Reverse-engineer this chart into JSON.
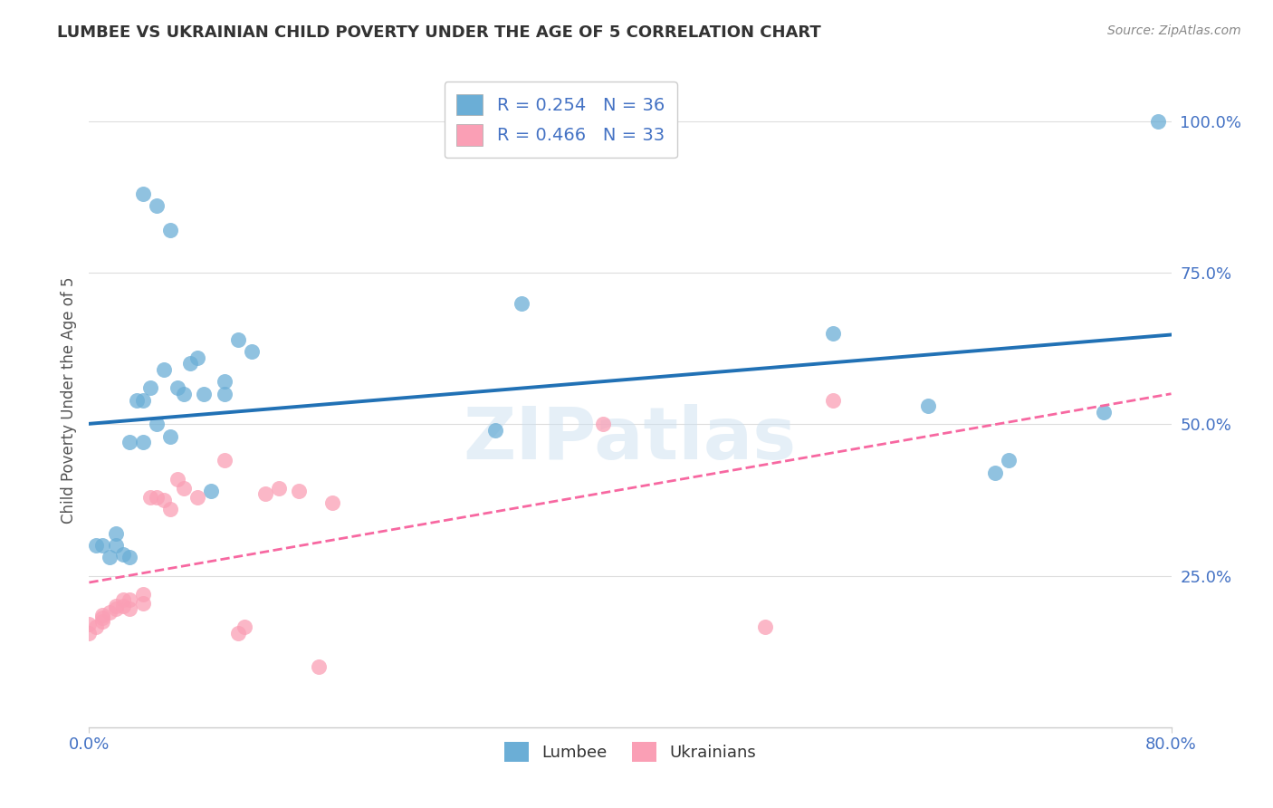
{
  "title": "LUMBEE VS UKRAINIAN CHILD POVERTY UNDER THE AGE OF 5 CORRELATION CHART",
  "source": "Source: ZipAtlas.com",
  "ylabel": "Child Poverty Under the Age of 5",
  "lumbee_color": "#6baed6",
  "lumbee_line_color": "#2171b5",
  "ukrainian_color": "#fa9fb5",
  "ukrainian_line_color": "#f768a1",
  "lumbee_R": 0.254,
  "lumbee_N": 36,
  "ukrainian_R": 0.466,
  "ukrainian_N": 33,
  "legend_label_lumbee": "Lumbee",
  "legend_label_ukrainian": "Ukrainians",
  "lumbee_x": [
    0.005,
    0.01,
    0.015,
    0.02,
    0.025,
    0.02,
    0.03,
    0.03,
    0.035,
    0.04,
    0.04,
    0.045,
    0.05,
    0.055,
    0.06,
    0.065,
    0.07,
    0.075,
    0.08,
    0.085,
    0.09,
    0.1,
    0.1,
    0.11,
    0.12,
    0.04,
    0.05,
    0.06,
    0.32,
    0.79,
    0.55,
    0.62,
    0.67,
    0.68,
    0.75,
    0.3
  ],
  "lumbee_y": [
    0.3,
    0.3,
    0.28,
    0.3,
    0.285,
    0.32,
    0.28,
    0.47,
    0.54,
    0.47,
    0.54,
    0.56,
    0.5,
    0.59,
    0.48,
    0.56,
    0.55,
    0.6,
    0.61,
    0.55,
    0.39,
    0.55,
    0.57,
    0.64,
    0.62,
    0.88,
    0.86,
    0.82,
    0.7,
    1.0,
    0.65,
    0.53,
    0.42,
    0.44,
    0.52,
    0.49
  ],
  "ukrainian_x": [
    0.0,
    0.0,
    0.005,
    0.01,
    0.01,
    0.01,
    0.015,
    0.02,
    0.02,
    0.025,
    0.025,
    0.03,
    0.03,
    0.04,
    0.04,
    0.045,
    0.05,
    0.055,
    0.06,
    0.065,
    0.07,
    0.08,
    0.1,
    0.11,
    0.115,
    0.13,
    0.14,
    0.155,
    0.17,
    0.18,
    0.38,
    0.5,
    0.55
  ],
  "ukrainian_y": [
    0.155,
    0.17,
    0.165,
    0.175,
    0.18,
    0.185,
    0.19,
    0.2,
    0.195,
    0.21,
    0.2,
    0.21,
    0.195,
    0.22,
    0.205,
    0.38,
    0.38,
    0.375,
    0.36,
    0.41,
    0.395,
    0.38,
    0.44,
    0.155,
    0.165,
    0.385,
    0.395,
    0.39,
    0.1,
    0.37,
    0.5,
    0.165,
    0.54
  ],
  "xlim": [
    0.0,
    0.8
  ],
  "ylim": [
    0.0,
    1.08
  ],
  "ytick_vals": [
    0.25,
    0.5,
    0.75,
    1.0
  ],
  "ytick_labels": [
    "25.0%",
    "50.0%",
    "75.0%",
    "100.0%"
  ],
  "xtick_vals": [
    0.0,
    0.8
  ],
  "xtick_labels": [
    "0.0%",
    "80.0%"
  ],
  "watermark": "ZIPatlas",
  "background_color": "#ffffff",
  "grid_color": "#dddddd",
  "tick_color": "#4472c4",
  "xlabel_color": "#4472c4"
}
